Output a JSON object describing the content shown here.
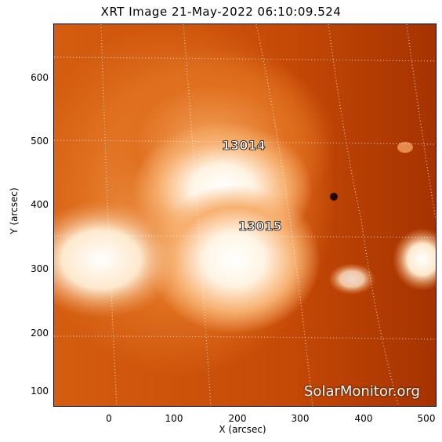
{
  "title": "XRT Image 21-May-2022 06:10:09.524",
  "axes": {
    "xlabel": "X (arcsec)",
    "ylabel": "Y (arcsec)",
    "xticks": [
      "0",
      "100",
      "200",
      "300",
      "400",
      "500"
    ],
    "yticks": [
      "100",
      "200",
      "300",
      "400",
      "500",
      "600"
    ]
  },
  "regions": [
    {
      "id": "13014"
    },
    {
      "id": "13015"
    }
  ],
  "watermark": "SolarMonitor.org",
  "colors": {
    "background": "#ffffff",
    "disk_base": "#b83a00",
    "corona_mid": "#e87a20",
    "corona_bright": "#fde0b8",
    "grid": "#ffffff"
  }
}
